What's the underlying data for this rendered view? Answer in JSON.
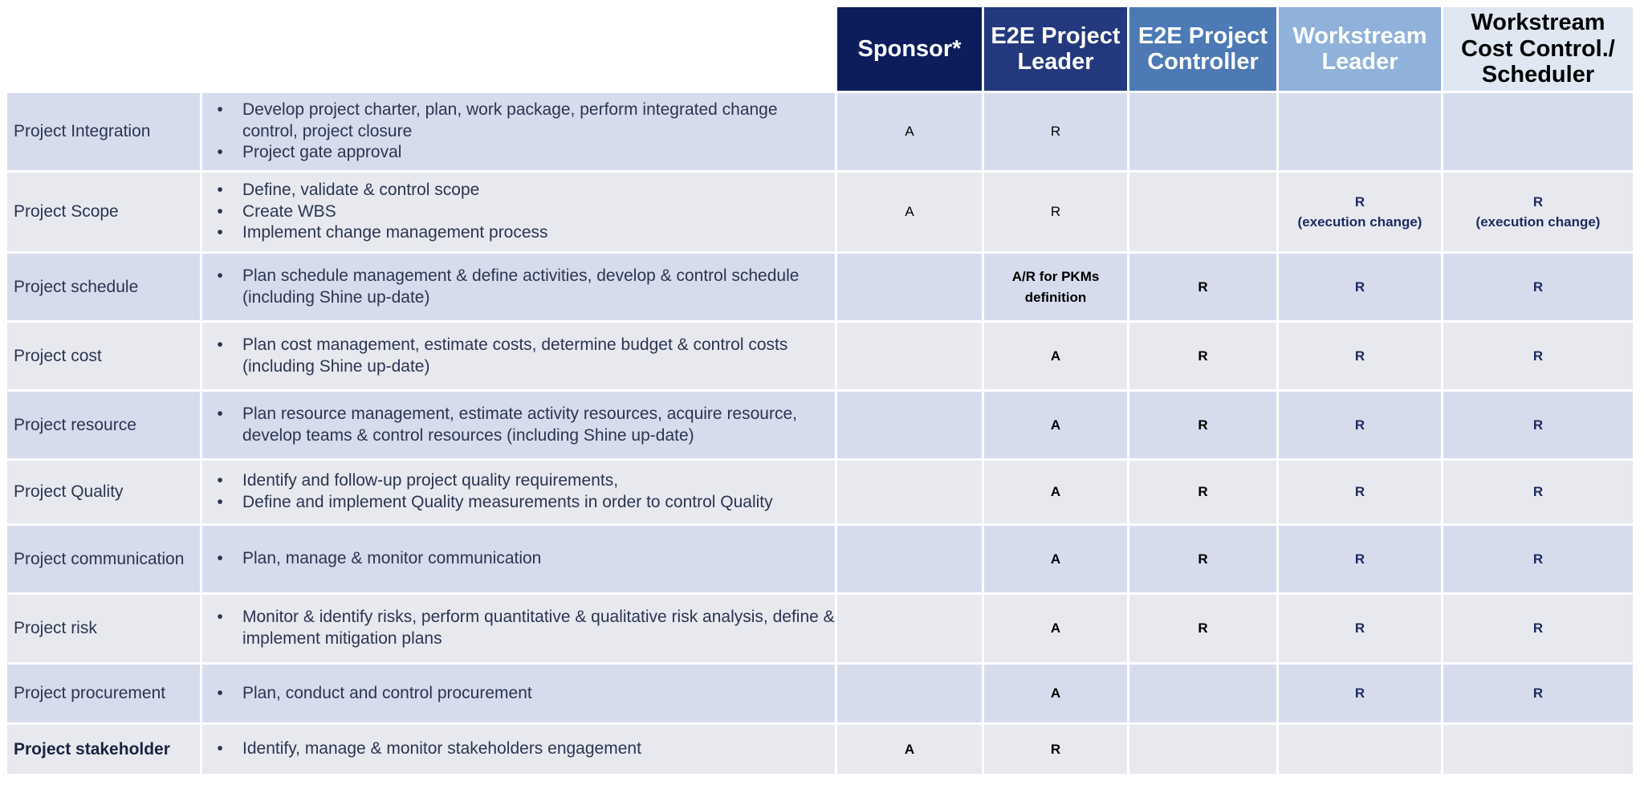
{
  "roles": [
    "Sponsor*",
    "E2E Project Leader",
    "E2E Project Controller",
    "Workstream Leader",
    "Workstream Cost Control./ Scheduler"
  ],
  "rows": [
    {
      "area": "Project Integration",
      "area_bold": false,
      "height": 96,
      "bullets": [
        "Develop project charter, plan, work package, perform integrated change control, project closure",
        "Project gate approval"
      ],
      "cells": [
        {
          "text": "A",
          "style": ""
        },
        {
          "text": "R",
          "style": ""
        },
        {
          "text": "",
          "style": ""
        },
        {
          "text": "",
          "style": ""
        },
        {
          "text": "",
          "style": ""
        }
      ]
    },
    {
      "area": "Project Scope",
      "area_bold": false,
      "height": 98,
      "bullets": [
        "Define, validate & control scope",
        "Create WBS",
        "Implement change management process"
      ],
      "cells": [
        {
          "text": "A",
          "style": ""
        },
        {
          "text": "R",
          "style": ""
        },
        {
          "text": "",
          "style": ""
        },
        {
          "text": "R\n(execution change)",
          "style": "navy"
        },
        {
          "text": "R\n(execution change)",
          "style": "navy"
        }
      ]
    },
    {
      "area": "Project schedule",
      "area_bold": false,
      "height": 83,
      "bullets": [
        "Plan schedule management & define activities, develop & control schedule (including Shine up-date)"
      ],
      "cells": [
        {
          "text": "",
          "style": ""
        },
        {
          "text": "A/R for PKMs\ndefinition",
          "style": "b"
        },
        {
          "text": "R",
          "style": "b"
        },
        {
          "text": "R",
          "style": "navy"
        },
        {
          "text": "R",
          "style": "navy"
        }
      ]
    },
    {
      "area": "Project cost",
      "area_bold": false,
      "height": 83,
      "bullets": [
        "Plan cost management, estimate costs, determine budget & control costs (including Shine up-date)"
      ],
      "cells": [
        {
          "text": "",
          "style": ""
        },
        {
          "text": "A",
          "style": "b"
        },
        {
          "text": "R",
          "style": "b"
        },
        {
          "text": "R",
          "style": "navy"
        },
        {
          "text": "R",
          "style": "navy"
        }
      ]
    },
    {
      "area": "Project resource",
      "area_bold": false,
      "height": 83,
      "bullets": [
        "Plan resource management, estimate activity resources, acquire resource, develop teams & control resources (including Shine up-date)"
      ],
      "cells": [
        {
          "text": "",
          "style": ""
        },
        {
          "text": "A",
          "style": "b"
        },
        {
          "text": "R",
          "style": "b"
        },
        {
          "text": "R",
          "style": "navy"
        },
        {
          "text": "R",
          "style": "navy"
        }
      ]
    },
    {
      "area": "Project Quality",
      "area_bold": false,
      "height": 78,
      "bullets": [
        "Identify and follow-up project quality requirements,",
        "Define and implement Quality measurements in order to control Quality"
      ],
      "cells": [
        {
          "text": "",
          "style": ""
        },
        {
          "text": "A",
          "style": "b"
        },
        {
          "text": "R",
          "style": "b"
        },
        {
          "text": "R",
          "style": "navy"
        },
        {
          "text": "R",
          "style": "navy"
        }
      ]
    },
    {
      "area": "Project communication",
      "area_bold": false,
      "height": 83,
      "bullets": [
        "Plan, manage & monitor communication"
      ],
      "cells": [
        {
          "text": "",
          "style": ""
        },
        {
          "text": "A",
          "style": "b"
        },
        {
          "text": "R",
          "style": "b"
        },
        {
          "text": "R",
          "style": "navy"
        },
        {
          "text": "R",
          "style": "navy"
        }
      ]
    },
    {
      "area": "Project risk",
      "area_bold": false,
      "height": 84,
      "bullets": [
        "Monitor & identify risks, perform quantitative & qualitative risk analysis, define & implement mitigation plans"
      ],
      "cells": [
        {
          "text": "",
          "style": ""
        },
        {
          "text": "A",
          "style": "b"
        },
        {
          "text": "R",
          "style": "b"
        },
        {
          "text": "R",
          "style": "navy"
        },
        {
          "text": "R",
          "style": "navy"
        }
      ]
    },
    {
      "area": "Project procurement",
      "area_bold": false,
      "height": 72,
      "bullets": [
        "Plan, conduct and control procurement"
      ],
      "cells": [
        {
          "text": "",
          "style": ""
        },
        {
          "text": "A",
          "style": "b"
        },
        {
          "text": "",
          "style": ""
        },
        {
          "text": "R",
          "style": "navy"
        },
        {
          "text": "R",
          "style": "navy"
        }
      ]
    },
    {
      "area": "Project stakeholder",
      "area_bold": true,
      "height": 61,
      "bullets": [
        "Identify, manage & monitor stakeholders engagement"
      ],
      "cells": [
        {
          "text": "A",
          "style": "b"
        },
        {
          "text": "R",
          "style": "b"
        },
        {
          "text": "",
          "style": ""
        },
        {
          "text": "",
          "style": ""
        },
        {
          "text": "",
          "style": ""
        }
      ]
    }
  ]
}
